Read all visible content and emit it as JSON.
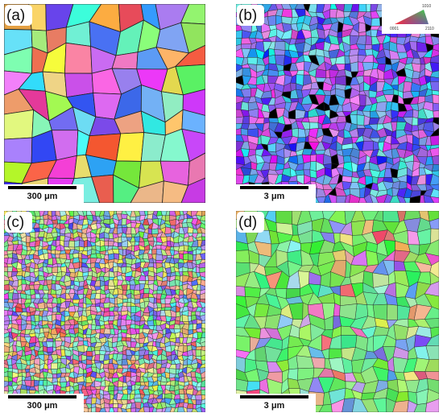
{
  "panels": [
    {
      "label": "(a)",
      "scale_bar": "300 μm"
    },
    {
      "label": "(b)",
      "scale_bar": "3 μm"
    },
    {
      "label": "(c)",
      "scale_bar": "300 μm"
    },
    {
      "label": "(d)",
      "scale_bar": "3 μm"
    }
  ],
  "legend": {
    "labels": [
      "0001",
      "2110",
      "1010"
    ]
  }
}
